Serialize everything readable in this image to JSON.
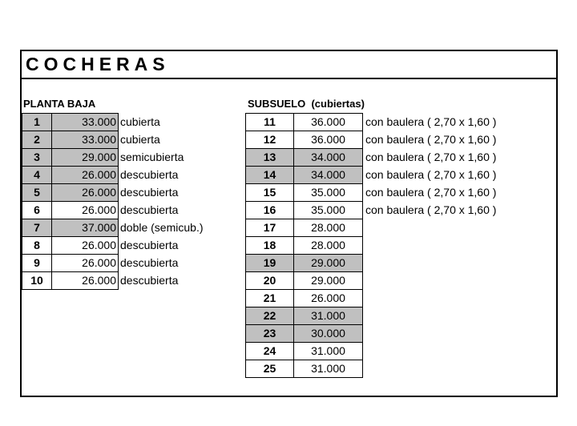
{
  "title": "COCHERAS",
  "planta_baja": {
    "heading": "PLANTA BAJA",
    "rows": [
      {
        "num": "1",
        "price": "33.000",
        "desc": "cubierta",
        "shaded": true
      },
      {
        "num": "2",
        "price": "33.000",
        "desc": "cubierta",
        "shaded": true
      },
      {
        "num": "3",
        "price": "29.000",
        "desc": "semicubierta",
        "shaded": true
      },
      {
        "num": "4",
        "price": "26.000",
        "desc": "descubierta",
        "shaded": true
      },
      {
        "num": "5",
        "price": "26.000",
        "desc": "descubierta",
        "shaded": true
      },
      {
        "num": "6",
        "price": "26.000",
        "desc": "descubierta",
        "shaded": false
      },
      {
        "num": "7",
        "price": "37.000",
        "desc": "doble (semicub.)",
        "shaded": true
      },
      {
        "num": "8",
        "price": "26.000",
        "desc": "descubierta",
        "shaded": false
      },
      {
        "num": "9",
        "price": "26.000",
        "desc": "descubierta",
        "shaded": false
      },
      {
        "num": "10",
        "price": "26.000",
        "desc": "descubierta",
        "shaded": false
      }
    ]
  },
  "subsuelo": {
    "heading": "SUBSUELO  (cubiertas)",
    "rows": [
      {
        "num": "11",
        "price": "36.000",
        "desc": "con baulera ( 2,70 x 1,60 )",
        "shaded": false
      },
      {
        "num": "12",
        "price": "36.000",
        "desc": "con baulera ( 2,70 x 1,60 )",
        "shaded": false
      },
      {
        "num": "13",
        "price": "34.000",
        "desc": "con baulera ( 2,70 x 1,60 )",
        "shaded": true
      },
      {
        "num": "14",
        "price": "34.000",
        "desc": "con baulera ( 2,70 x 1,60 )",
        "shaded": true
      },
      {
        "num": "15",
        "price": "35.000",
        "desc": "con baulera ( 2,70 x 1,60 )",
        "shaded": false
      },
      {
        "num": "16",
        "price": "35.000",
        "desc": "con baulera ( 2,70 x 1,60 )",
        "shaded": false
      },
      {
        "num": "17",
        "price": "28.000",
        "desc": "",
        "shaded": false
      },
      {
        "num": "18",
        "price": "28.000",
        "desc": "",
        "shaded": false
      },
      {
        "num": "19",
        "price": "29.000",
        "desc": "",
        "shaded": true
      },
      {
        "num": "20",
        "price": "29.000",
        "desc": "",
        "shaded": false
      },
      {
        "num": "21",
        "price": "26.000",
        "desc": "",
        "shaded": false
      },
      {
        "num": "22",
        "price": "31.000",
        "desc": "",
        "shaded": true
      },
      {
        "num": "23",
        "price": "30.000",
        "desc": "",
        "shaded": true
      },
      {
        "num": "24",
        "price": "31.000",
        "desc": "",
        "shaded": false
      },
      {
        "num": "25",
        "price": "31.000",
        "desc": "",
        "shaded": false
      }
    ]
  },
  "colors": {
    "shade": "#c0c0c0",
    "border": "#000000"
  }
}
